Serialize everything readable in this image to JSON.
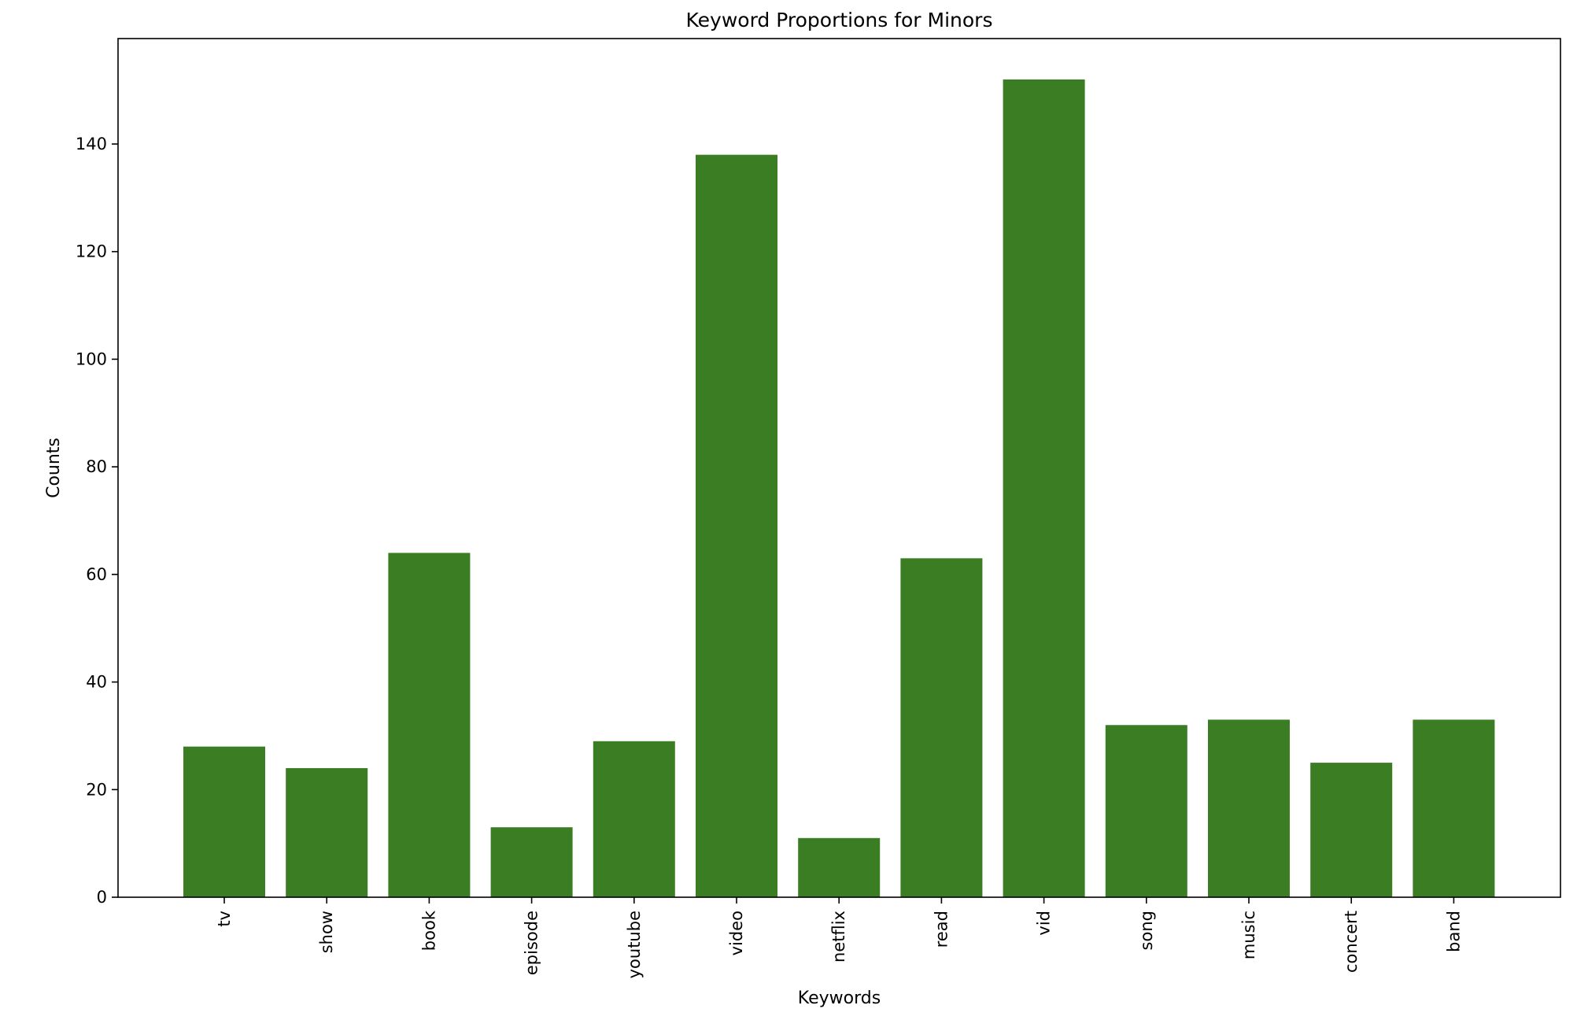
{
  "chart_data": {
    "type": "bar",
    "title": "Keyword Proportions for Minors",
    "xlabel": "Keywords",
    "ylabel": "Counts",
    "categories": [
      "tv",
      "show",
      "book",
      "episode",
      "youtube",
      "video",
      "netflix",
      "read",
      "vid",
      "song",
      "music",
      "concert",
      "band"
    ],
    "values": [
      28,
      24,
      64,
      13,
      29,
      138,
      11,
      63,
      152,
      32,
      33,
      25,
      33
    ],
    "yticks": [
      0,
      20,
      40,
      60,
      80,
      100,
      120,
      140
    ],
    "ylim": [
      0,
      159.6
    ],
    "bar_color": "#3a7d22",
    "grid": false,
    "legend": "none"
  }
}
